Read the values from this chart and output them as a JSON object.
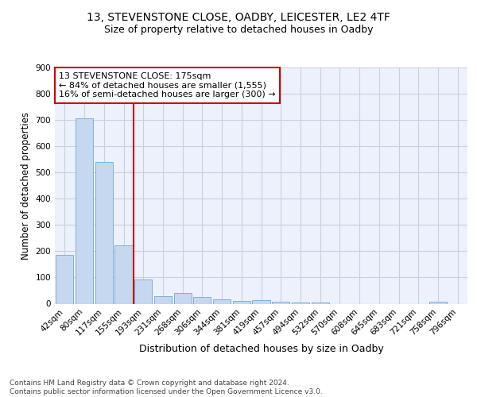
{
  "title1": "13, STEVENSTONE CLOSE, OADBY, LEICESTER, LE2 4TF",
  "title2": "Size of property relative to detached houses in Oadby",
  "xlabel": "Distribution of detached houses by size in Oadby",
  "ylabel": "Number of detached properties",
  "bar_labels": [
    "42sqm",
    "80sqm",
    "117sqm",
    "155sqm",
    "193sqm",
    "231sqm",
    "268sqm",
    "306sqm",
    "344sqm",
    "381sqm",
    "419sqm",
    "457sqm",
    "494sqm",
    "532sqm",
    "570sqm",
    "608sqm",
    "645sqm",
    "683sqm",
    "721sqm",
    "758sqm",
    "796sqm"
  ],
  "bar_values": [
    185,
    707,
    540,
    222,
    91,
    28,
    40,
    25,
    18,
    12,
    13,
    8,
    6,
    5,
    0,
    0,
    0,
    0,
    0,
    9,
    0
  ],
  "bar_color": "#c5d8f0",
  "bar_edge_color": "#6fa8d4",
  "vline_x": 3.5,
  "vline_color": "#cc0000",
  "annotation_text": "13 STEVENSTONE CLOSE: 175sqm\n← 84% of detached houses are smaller (1,555)\n16% of semi-detached houses are larger (300) →",
  "annotation_box_color": "#ffffff",
  "annotation_box_edge": "#cc0000",
  "ylim": [
    0,
    900
  ],
  "yticks": [
    0,
    100,
    200,
    300,
    400,
    500,
    600,
    700,
    800,
    900
  ],
  "grid_color": "#c8d0e0",
  "bg_color": "#edf1fb",
  "footer_text": "Contains HM Land Registry data © Crown copyright and database right 2024.\nContains public sector information licensed under the Open Government Licence v3.0.",
  "title1_fontsize": 10,
  "title2_fontsize": 9,
  "xlabel_fontsize": 9,
  "ylabel_fontsize": 8.5,
  "tick_fontsize": 7.5,
  "annotation_fontsize": 8,
  "footer_fontsize": 6.5
}
